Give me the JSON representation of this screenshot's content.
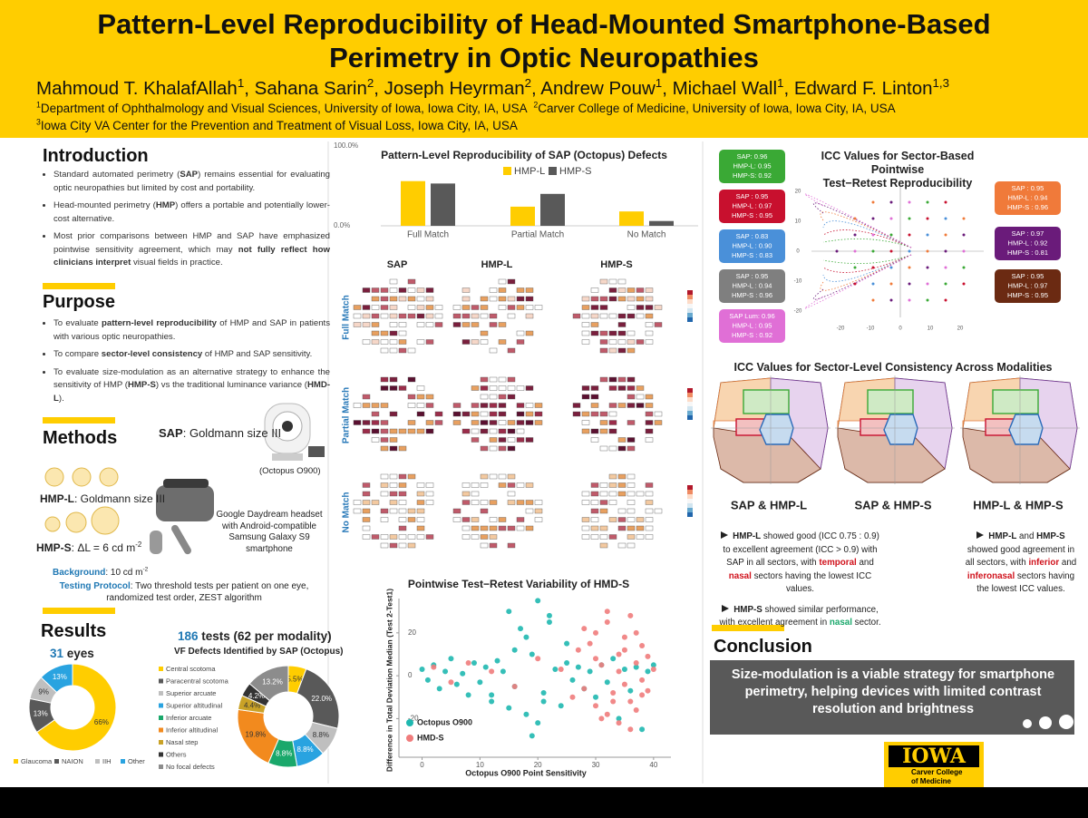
{
  "header": {
    "title": [
      "Pattern-Level Reproducibility of Head-Mounted Smartphone-Based",
      "Perimetry in Optic Neuropathies"
    ],
    "authors": [
      {
        "t": "Mahmoud T. KhalafAllah"
      },
      {
        "t": "1",
        "s": "sup"
      },
      {
        "t": ", Sahana Sarin"
      },
      {
        "t": "2",
        "s": "sup"
      },
      {
        "t": ", Joseph Heyrman"
      },
      {
        "t": "2",
        "s": "sup"
      },
      {
        "t": ", Andrew Pouw"
      },
      {
        "t": "1",
        "s": "sup"
      },
      {
        "t": ", Michael Wall"
      },
      {
        "t": "1",
        "s": "sup"
      },
      {
        "t": ", Edward F. Linton"
      },
      {
        "t": "1,3",
        "s": "sup"
      }
    ],
    "affiliations": [
      [
        {
          "t": "1",
          "s": "sup"
        },
        {
          "t": "Department of Ophthalmology and Visual Sciences, University of Iowa, Iowa City, IA, USA  "
        },
        {
          "t": "2",
          "s": "sup"
        },
        {
          "t": "Carver College of Medicine, University of Iowa, Iowa City, IA, USA"
        }
      ],
      [
        {
          "t": "3",
          "s": "sup"
        },
        {
          "t": "Iowa City VA Center for the Prevention and Treatment of Visual Loss, Iowa City, IA, USA"
        }
      ]
    ]
  },
  "intro": {
    "heading": "Introduction",
    "bullets": [
      [
        {
          "t": "Standard automated perimetry ("
        },
        {
          "t": "SAP",
          "s": "b"
        },
        {
          "t": ") remains essential for evaluating optic neuropathies but limited by cost and portability."
        }
      ],
      [
        {
          "t": "Head-mounted perimetry ("
        },
        {
          "t": "HMP",
          "s": "b"
        },
        {
          "t": ") offers a portable and potentially lower-cost alternative."
        }
      ],
      [
        {
          "t": "Most prior comparisons between HMP and SAP have emphasized pointwise sensitivity agreement, which may "
        },
        {
          "t": "not fully reflect how clinicians interpret",
          "s": "b"
        },
        {
          "t": " visual fields in practice."
        }
      ]
    ]
  },
  "purpose": {
    "heading": "Purpose",
    "bullets": [
      [
        {
          "t": "To evaluate "
        },
        {
          "t": "pattern-level reproducibility",
          "s": "b"
        },
        {
          "t": " of HMP and SAP in patients with various optic neuropathies."
        }
      ],
      [
        {
          "t": "To compare "
        },
        {
          "t": "sector-level consistency",
          "s": "b"
        },
        {
          "t": " of HMP and SAP sensitivity."
        }
      ],
      [
        {
          "t": "To evaluate size-modulation as an alternative strategy to enhance the sensitivity of HMP ("
        },
        {
          "t": "HMP-S",
          "s": "b"
        },
        {
          "t": ") vs the traditional luminance variance ("
        },
        {
          "t": "HMD-L",
          "s": "b"
        },
        {
          "t": ")."
        }
      ]
    ]
  },
  "methods": {
    "heading": "Methods",
    "sap": [
      {
        "t": "SAP",
        "s": "b"
      },
      {
        "t": ": Goldmann size III"
      }
    ],
    "device": "(Octopus O900)",
    "hmpl": [
      {
        "t": "HMP-L",
        "s": "b"
      },
      {
        "t": ": Goldmann size III"
      }
    ],
    "hmps": [
      {
        "t": "HMP-S",
        "s": "b"
      },
      {
        "t": ": ΔL = 6 cd m"
      },
      {
        "t": "-2",
        "s": "sup"
      }
    ],
    "headset": "Google Daydream headset with Android-compatible Samsung Galaxy S9 smartphone",
    "background": [
      {
        "t": "Background",
        "s": "bb"
      },
      {
        "t": ": 10 cd m"
      },
      {
        "t": "-2",
        "s": "sup"
      }
    ],
    "protocol": [
      {
        "t": "Testing Protocol",
        "s": "bb"
      },
      {
        "t": ": Two threshold tests per patient on one eye, randomized test order, ZEST algorithm"
      }
    ]
  },
  "results": {
    "heading": "Results",
    "eyes": [
      {
        "t": "31",
        "s": "bb"
      },
      {
        "t": " eyes",
        "s": "b"
      }
    ],
    "tests": [
      {
        "t": "186",
        "s": "bb"
      },
      {
        "t": " tests (62 per modality)",
        "s": "b"
      }
    ]
  },
  "chart_data": [
    {
      "type": "pie",
      "donut": true,
      "categories": [
        "Glaucoma",
        "NAION",
        "IIH",
        "Other"
      ],
      "values": [
        66,
        13,
        9,
        13
      ],
      "value_labels": [
        "66%",
        "13%",
        "9%",
        "13%"
      ],
      "colors": [
        "#FFCD00",
        "#595959",
        "#bfbfbf",
        "#29a3e0"
      ]
    },
    {
      "type": "pie",
      "donut": true,
      "title": "VF Defects Identified by SAP (Octopus)",
      "categories": [
        "Central scotoma",
        "Paracentral scotoma",
        "Superior arcuate",
        "Superior altitudinal",
        "Inferior arcuate",
        "Inferior altitudinal",
        "Nasal step",
        "Others",
        "No focal defects"
      ],
      "values": [
        5.5,
        22.0,
        8.8,
        8.8,
        8.8,
        19.8,
        4.4,
        4.2,
        13.2
      ],
      "value_labels": [
        "5.5%",
        "22.0%",
        "8.8%",
        "8.8%",
        "8.8%",
        "19.8%",
        "4.4%",
        "4.2%",
        "13.2%"
      ],
      "colors": [
        "#FFCD00",
        "#595959",
        "#bfbfbf",
        "#29a3e0",
        "#1aa86b",
        "#f28a1e",
        "#c9a227",
        "#333333",
        "#8c8c8c"
      ]
    },
    {
      "type": "bar",
      "title": "Pattern-Level Reproducibility of SAP (Octopus) Defects",
      "categories": [
        "Full Match",
        "Partial Match",
        "No Match"
      ],
      "series": [
        {
          "name": "HMP-L",
          "color": "#FFCD00",
          "values": [
            56,
            24,
            18
          ]
        },
        {
          "name": "HMP-S",
          "color": "#595959",
          "values": [
            53,
            40,
            6
          ]
        }
      ],
      "ylim": [
        0,
        100
      ],
      "yticks": [
        {
          "value": 0,
          "label": "0.0%"
        },
        {
          "value": 100,
          "label": "100.0%"
        }
      ]
    },
    {
      "type": "scatter",
      "title": "Pointwise Test−Retest Variability of HMD-S",
      "xlabel": "Octopus O900 Point Sensitivity",
      "ylabel": "Difference in Total Deviation Median (Test 2-Test1)",
      "xlim": [
        -4,
        43
      ],
      "ylim": [
        -38,
        36
      ],
      "xticks": [
        0,
        10,
        20,
        30,
        40
      ],
      "yticks": [
        -20,
        0,
        20
      ],
      "series": [
        {
          "name": "Octopus O900",
          "color": "#1fb8b0",
          "x": [
            0,
            1,
            2,
            3,
            4,
            5,
            6,
            7,
            8,
            9,
            10,
            11,
            12,
            13,
            14,
            15,
            16,
            17,
            18,
            19,
            20,
            21,
            22,
            23,
            24,
            25,
            26,
            27,
            28,
            29,
            30,
            31,
            32,
            33,
            34,
            35,
            36,
            37,
            38,
            39,
            40,
            15,
            18,
            20,
            22,
            16,
            12,
            25,
            19,
            21
          ],
          "values": [
            3,
            -2,
            5,
            -6,
            2,
            8,
            -4,
            1,
            -9,
            6,
            -3,
            4,
            -12,
            7,
            2,
            30,
            -5,
            22,
            -18,
            10,
            35,
            -8,
            28,
            3,
            -14,
            6,
            -2,
            4,
            -6,
            2,
            -10,
            5,
            -3,
            8,
            -20,
            3,
            -7,
            4,
            -25,
            2,
            5,
            -15,
            18,
            -22,
            25,
            12,
            -9,
            15,
            -28,
            -12
          ]
        },
        {
          "name": "HMD-S",
          "color": "#f07c7c",
          "x": [
            2,
            5,
            8,
            12,
            16,
            20,
            24,
            26,
            27,
            28,
            29,
            30,
            30,
            31,
            32,
            32,
            33,
            34,
            34,
            35,
            35,
            36,
            36,
            37,
            37,
            38,
            38,
            39,
            39,
            40,
            28,
            30,
            31,
            33,
            35,
            36,
            37,
            38,
            32,
            34
          ],
          "values": [
            4,
            -3,
            6,
            2,
            -5,
            8,
            3,
            -10,
            12,
            -6,
            15,
            -14,
            20,
            5,
            -18,
            25,
            -8,
            10,
            -22,
            18,
            -4,
            28,
            -12,
            6,
            -16,
            14,
            -2,
            9,
            -7,
            3,
            22,
            8,
            -20,
            -12,
            12,
            -25,
            20,
            -9,
            30,
            2
          ]
        }
      ]
    }
  ],
  "heatmap": {
    "columns": [
      "SAP",
      "HMP-L",
      "HMP-S"
    ],
    "rows": [
      "Full Match",
      "Partial Match",
      "No Match"
    ]
  },
  "icc_sector": {
    "title": [
      "ICC Values for Sector-Based Pointwise",
      "Test−Retest Reproducibility"
    ],
    "ticks": [
      -20,
      -10,
      0,
      10,
      20
    ],
    "left_boxes": [
      {
        "color": "#3aa935",
        "lines": [
          "SAP: 0.96",
          "HMP-L: 0.95",
          "HMP-S: 0.92"
        ]
      },
      {
        "color": "#c8102e",
        "lines": [
          "SAP : 0.95",
          "HMP-L : 0.97",
          "HMP-S : 0.95"
        ]
      },
      {
        "color": "#4a90d9",
        "lines": [
          "SAP : 0.83",
          "HMP-L : 0.90",
          "HMP-S : 0.83"
        ]
      },
      {
        "color": "#7f7f7f",
        "lines": [
          "SAP : 0.95",
          "HMP-L : 0.94",
          "HMP-S : 0.96"
        ]
      },
      {
        "color": "#e06fd6",
        "lines": [
          "SAP Lum: 0.96",
          "HMP-L : 0.95",
          "HMP-S : 0.92"
        ]
      }
    ],
    "right_boxes": [
      {
        "color": "#f07a3a",
        "lines": [
          "SAP : 0.95",
          "HMP-L : 0.94",
          "HMP-S : 0.96"
        ]
      },
      {
        "color": "#6a1b7a",
        "lines": [
          "SAP : 0.97",
          "HMP-L : 0.92",
          "HMP-S : 0.81"
        ]
      },
      {
        "color": "#6b2a12",
        "lines": [
          "SAP : 0.95",
          "HMP-L : 0.97",
          "HMP-S : 0.95"
        ]
      }
    ]
  },
  "icc_modality": {
    "title": "ICC Values for Sector-Level Consistency Across Modalities",
    "captions": [
      "SAP & HMP-L",
      "SAP & HMP-S",
      "HMP-L & HMP-S"
    ],
    "left_bullets": [
      [
        {
          "t": "HMP-L",
          "s": "b"
        },
        {
          "t": " showed good (ICC 0.75 : 0.9) to excellent agreement (ICC > 0.9) with SAP in all sectors, with "
        },
        {
          "t": "temporal",
          "s": "red"
        },
        {
          "t": " and "
        },
        {
          "t": "nasal",
          "s": "red"
        },
        {
          "t": " sectors having the lowest ICC values."
        }
      ],
      [
        {
          "t": "HMP-S",
          "s": "b"
        },
        {
          "t": " showed similar performance, with excellent agreement in "
        },
        {
          "t": "nasal",
          "s": "green"
        },
        {
          "t": " sector."
        }
      ]
    ],
    "right_bullets": [
      [
        {
          "t": "HMP-L",
          "s": "b"
        },
        {
          "t": " and "
        },
        {
          "t": "HMP-S",
          "s": "b"
        },
        {
          "t": " showed good agreement in all sectors, with "
        },
        {
          "t": "inferior",
          "s": "red"
        },
        {
          "t": " and "
        },
        {
          "t": "inferonasal",
          "s": "red"
        },
        {
          "t": " sectors having the lowest ICC values."
        }
      ]
    ]
  },
  "conclusion": {
    "heading": "Conclusion",
    "text": "Size-modulation is a viable strategy for smartphone perimetry, helping devices with limited contrast resolution and brightness"
  },
  "logo": {
    "name": "IOWA",
    "unit": "Carver College of Medicine"
  }
}
